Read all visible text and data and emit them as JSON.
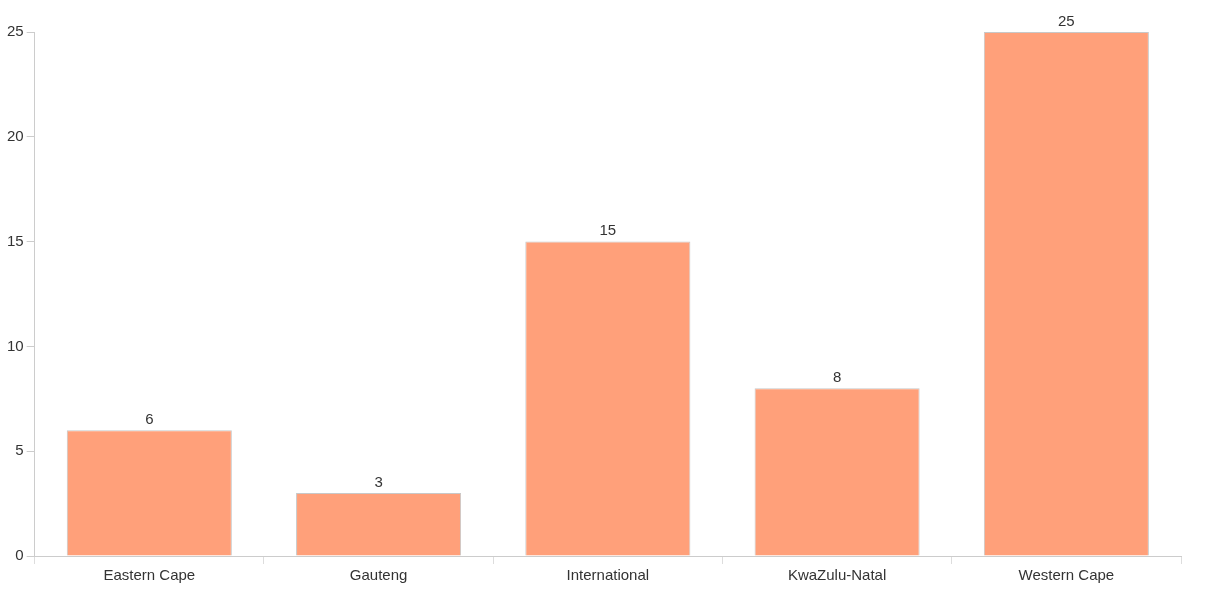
{
  "chart_data": {
    "type": "bar",
    "categories": [
      "Eastern Cape",
      "Gauteng",
      "International",
      "KwaZulu-Natal",
      "Western Cape"
    ],
    "values": [
      6,
      3,
      15,
      8,
      25
    ],
    "color": "#ffa07a",
    "ylim": [
      0,
      25
    ],
    "yticks": [
      0,
      5,
      10,
      15,
      20,
      25
    ],
    "grid": false,
    "legend": false,
    "data_labels": true
  }
}
